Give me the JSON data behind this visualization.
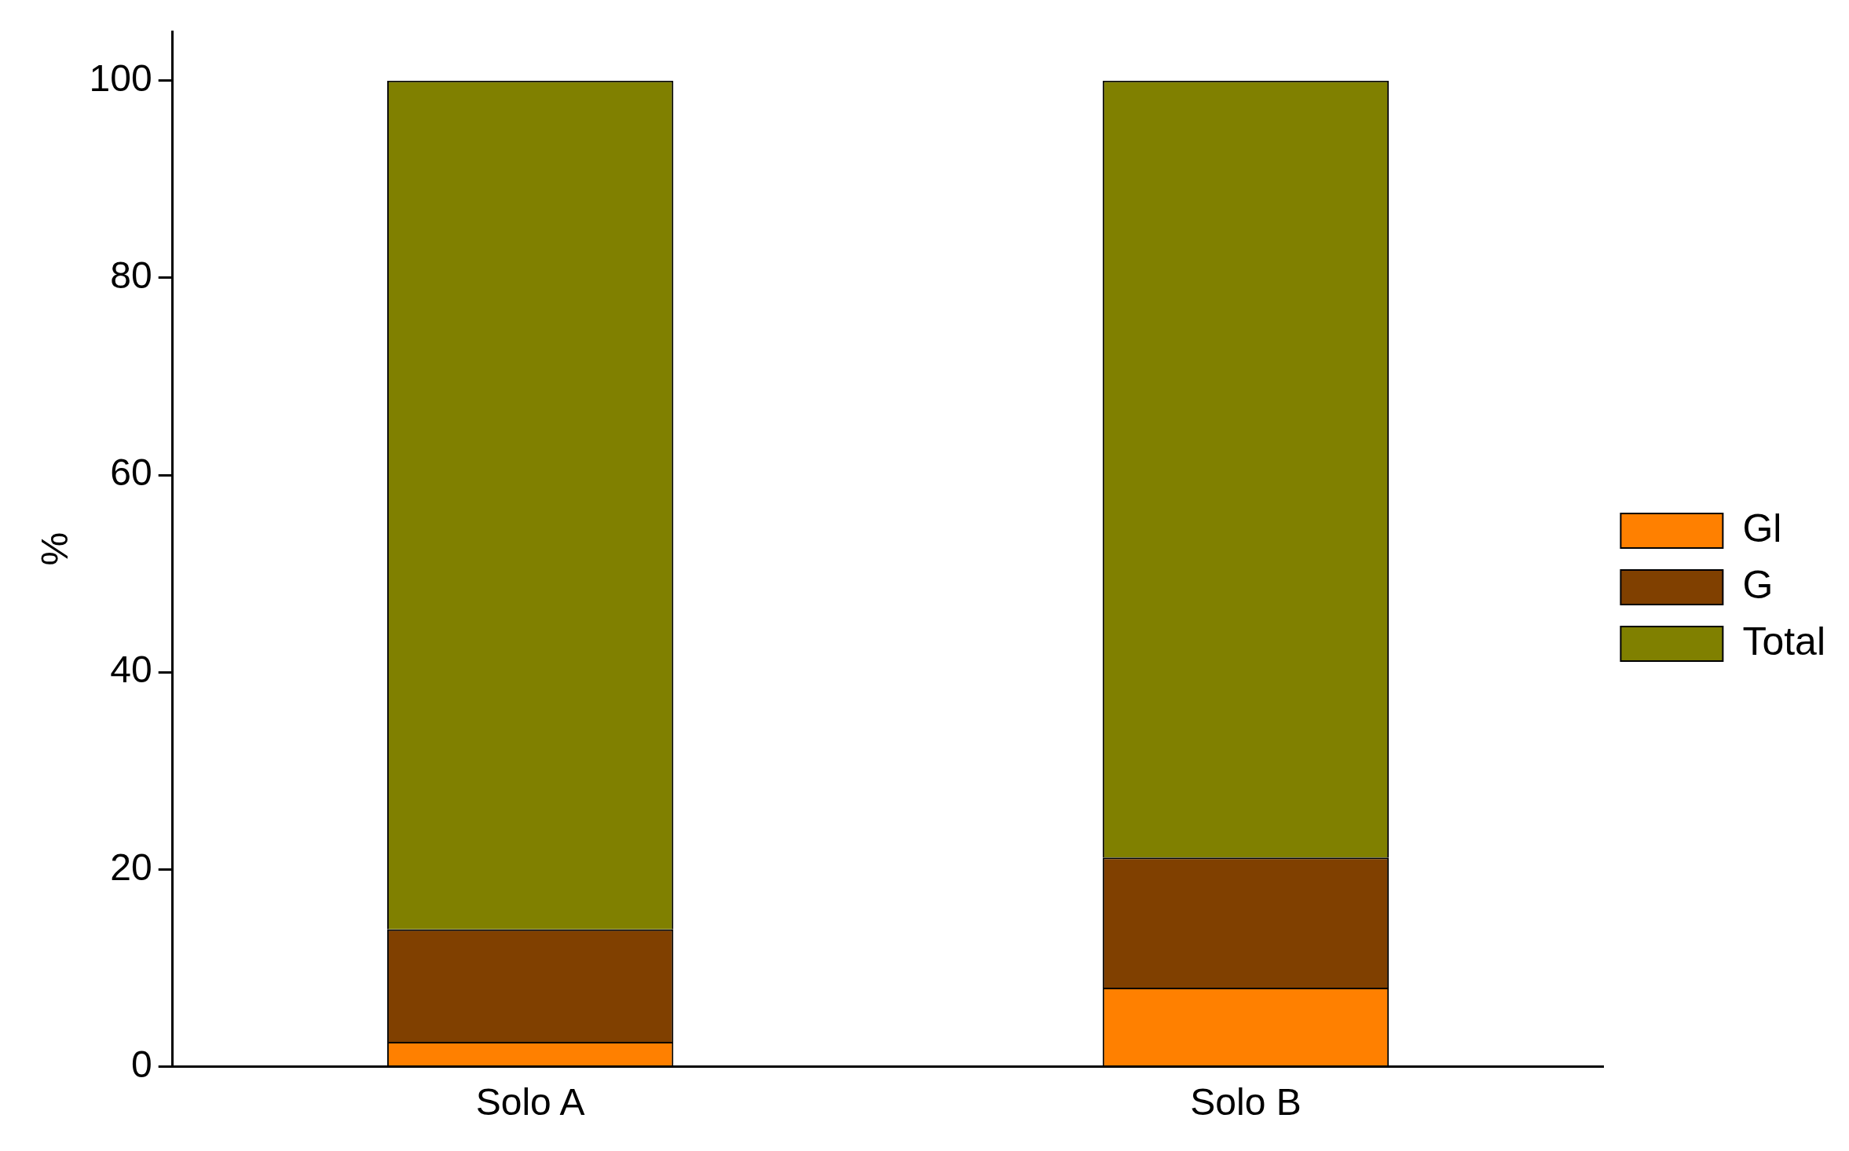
{
  "chart_data": {
    "type": "bar",
    "ylabel": "%",
    "categories": [
      "Solo A",
      "Solo B"
    ],
    "stacked": true,
    "series": [
      {
        "name": "Gl",
        "color": "#ff8000",
        "values": [
          2.5,
          8.0
        ]
      },
      {
        "name": "G",
        "color": "#804000",
        "values": [
          11.4,
          13.2
        ]
      },
      {
        "name": "Total",
        "color": "#808000",
        "values": [
          86.1,
          78.8
        ]
      }
    ],
    "ylim": [
      0,
      105
    ],
    "yticks": [
      0,
      20,
      40,
      60,
      80,
      100
    ],
    "grid": false,
    "legend": "right"
  }
}
